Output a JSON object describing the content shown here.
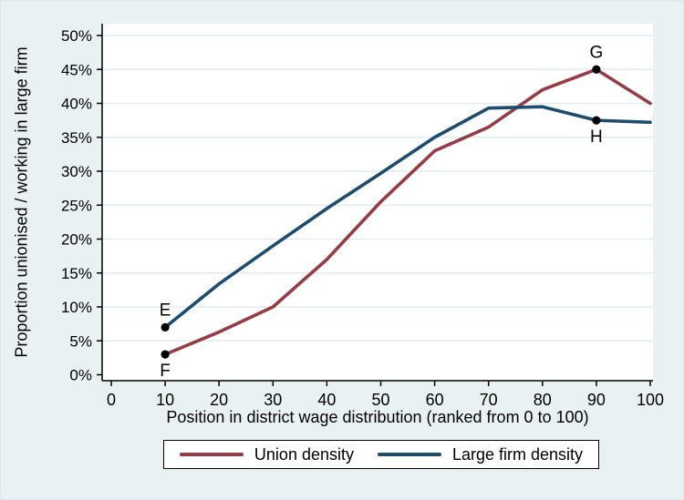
{
  "figure": {
    "background": "#EAF1F3",
    "plot_background": "#FFFFFF",
    "gridline_color": "#E2ECEF",
    "axis_color": "#000000",
    "text_color": "#000000",
    "border_color": "#DDE7EB"
  },
  "chart_data": {
    "type": "line",
    "title": "",
    "xlabel": "Position in district wage distribution (ranked from 0 to 100)",
    "ylabel": "Proportion unionised / working in large firm",
    "x": [
      10,
      20,
      30,
      40,
      50,
      60,
      70,
      80,
      90,
      100
    ],
    "series": [
      {
        "name": "Union density",
        "color": "#963C44",
        "values": [
          3,
          6.3,
          10,
          17,
          25.5,
          33,
          36.5,
          42,
          45,
          40
        ]
      },
      {
        "name": "Large firm density",
        "color": "#1E4C6E",
        "values": [
          7,
          13.4,
          19,
          24.5,
          29.7,
          35,
          39.3,
          39.5,
          37.5,
          37.2
        ]
      }
    ],
    "xlim": [
      0,
      100
    ],
    "ylim": [
      0,
      50
    ],
    "xticks": [
      0,
      10,
      20,
      30,
      40,
      50,
      60,
      70,
      80,
      90,
      100
    ],
    "yticks": [
      0,
      5,
      10,
      15,
      20,
      25,
      30,
      35,
      40,
      45,
      50
    ],
    "ytick_suffix": "%",
    "grid": "horizontal",
    "legend_position": "bottom",
    "marker_color": "#000000",
    "point_labels": [
      {
        "label": "E",
        "series": "Large firm density",
        "x": 10,
        "y": 7,
        "position": "above"
      },
      {
        "label": "F",
        "series": "Union density",
        "x": 10,
        "y": 3,
        "position": "below"
      },
      {
        "label": "G",
        "series": "Union density",
        "x": 90,
        "y": 45,
        "position": "above"
      },
      {
        "label": "H",
        "series": "Large firm density",
        "x": 90,
        "y": 37.5,
        "position": "below"
      }
    ]
  }
}
